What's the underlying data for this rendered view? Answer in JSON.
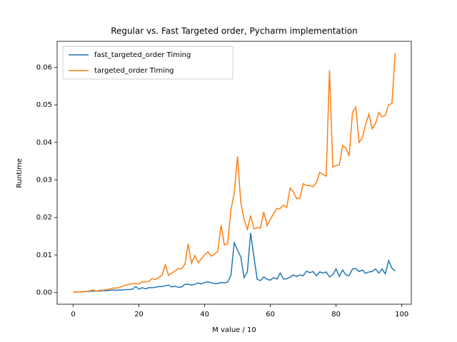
{
  "chart_data": {
    "type": "line",
    "title": "Regular vs. Fast Targeted order, Pycharm implementation",
    "x_label": "M value / 10",
    "y_label": "Runtime",
    "x": [
      0,
      1,
      2,
      3,
      4,
      5,
      6,
      7,
      8,
      9,
      10,
      11,
      12,
      13,
      14,
      15,
      16,
      17,
      18,
      19,
      20,
      21,
      22,
      23,
      24,
      25,
      26,
      27,
      28,
      29,
      30,
      31,
      32,
      33,
      34,
      35,
      36,
      37,
      38,
      39,
      40,
      41,
      42,
      43,
      44,
      45,
      46,
      47,
      48,
      49,
      50,
      51,
      52,
      53,
      54,
      55,
      56,
      57,
      58,
      59,
      60,
      61,
      62,
      63,
      64,
      65,
      66,
      67,
      68,
      69,
      70,
      71,
      72,
      73,
      74,
      75,
      76,
      77,
      78,
      79,
      80,
      81,
      82,
      83,
      84,
      85,
      86,
      87,
      88,
      89,
      90,
      91,
      92,
      93,
      94,
      95,
      96,
      97,
      98
    ],
    "series": [
      {
        "name": "fast_targeted_order Timing",
        "color": "#1f77b4",
        "values": [
          0.0001,
          0.0002,
          0.0002,
          0.0002,
          0.0003,
          0.0003,
          0.0004,
          0.0004,
          0.0004,
          0.0005,
          0.0005,
          0.0006,
          0.0007,
          0.0006,
          0.0007,
          0.0007,
          0.0008,
          0.0008,
          0.0009,
          0.0016,
          0.0009,
          0.0013,
          0.001,
          0.0013,
          0.0013,
          0.0014,
          0.0016,
          0.0016,
          0.0018,
          0.002,
          0.0015,
          0.0017,
          0.0014,
          0.0015,
          0.0022,
          0.0022,
          0.002,
          0.0022,
          0.0026,
          0.0023,
          0.0027,
          0.0029,
          0.0026,
          0.0024,
          0.0024,
          0.0027,
          0.0026,
          0.0028,
          0.0046,
          0.0133,
          0.0113,
          0.0095,
          0.004,
          0.0055,
          0.0159,
          0.0095,
          0.0035,
          0.0032,
          0.0042,
          0.0035,
          0.0033,
          0.004,
          0.0036,
          0.0052,
          0.0036,
          0.0037,
          0.0041,
          0.0047,
          0.0043,
          0.0047,
          0.0045,
          0.0057,
          0.0053,
          0.0056,
          0.0045,
          0.0055,
          0.0052,
          0.0055,
          0.0042,
          0.0047,
          0.0063,
          0.0043,
          0.006,
          0.0047,
          0.0045,
          0.0063,
          0.0064,
          0.0056,
          0.006,
          0.0051,
          0.0055,
          0.0056,
          0.0063,
          0.0052,
          0.0063,
          0.005,
          0.0085,
          0.0065,
          0.0057
        ]
      },
      {
        "name": "targeted_order Timing",
        "color": "#ff7f0e",
        "values": [
          0.0001,
          0.0002,
          0.0002,
          0.0003,
          0.0003,
          0.0004,
          0.0007,
          0.0004,
          0.0006,
          0.0006,
          0.0008,
          0.0009,
          0.0012,
          0.0012,
          0.0013,
          0.0017,
          0.002,
          0.0022,
          0.0024,
          0.0024,
          0.0023,
          0.0029,
          0.0028,
          0.003,
          0.0037,
          0.0035,
          0.004,
          0.0046,
          0.0074,
          0.0046,
          0.0052,
          0.0058,
          0.0064,
          0.0064,
          0.0075,
          0.013,
          0.0078,
          0.0099,
          0.008,
          0.009,
          0.0101,
          0.0108,
          0.0097,
          0.0102,
          0.011,
          0.018,
          0.0127,
          0.013,
          0.022,
          0.0265,
          0.0363,
          0.024,
          0.0195,
          0.0168,
          0.0205,
          0.017,
          0.0173,
          0.0172,
          0.0215,
          0.0178,
          0.0195,
          0.021,
          0.0224,
          0.0224,
          0.0233,
          0.0227,
          0.0278,
          0.0268,
          0.025,
          0.0252,
          0.029,
          0.0285,
          0.0285,
          0.0282,
          0.0292,
          0.032,
          0.0315,
          0.031,
          0.0592,
          0.0335,
          0.0338,
          0.034,
          0.0392,
          0.0385,
          0.0364,
          0.048,
          0.0494,
          0.04,
          0.0412,
          0.0448,
          0.0475,
          0.0436,
          0.045,
          0.048,
          0.0468,
          0.0472,
          0.05,
          0.0503,
          0.0638
        ]
      }
    ],
    "xlim": [
      -4.9,
      102.9
    ],
    "ylim": [
      -0.0031,
      0.0669
    ],
    "xticks": [
      0,
      20,
      40,
      60,
      80,
      100
    ],
    "yticks": [
      {
        "value": 0,
        "label": "0.00"
      },
      0.01,
      0.02,
      0.03,
      0.04,
      0.05,
      0.06
    ],
    "legend": "upper left"
  }
}
